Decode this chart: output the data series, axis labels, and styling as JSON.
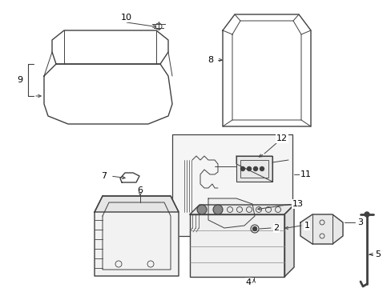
{
  "bg_color": "#ffffff",
  "line_color": "#404040",
  "fig_width": 4.89,
  "fig_height": 3.6,
  "dpi": 100
}
